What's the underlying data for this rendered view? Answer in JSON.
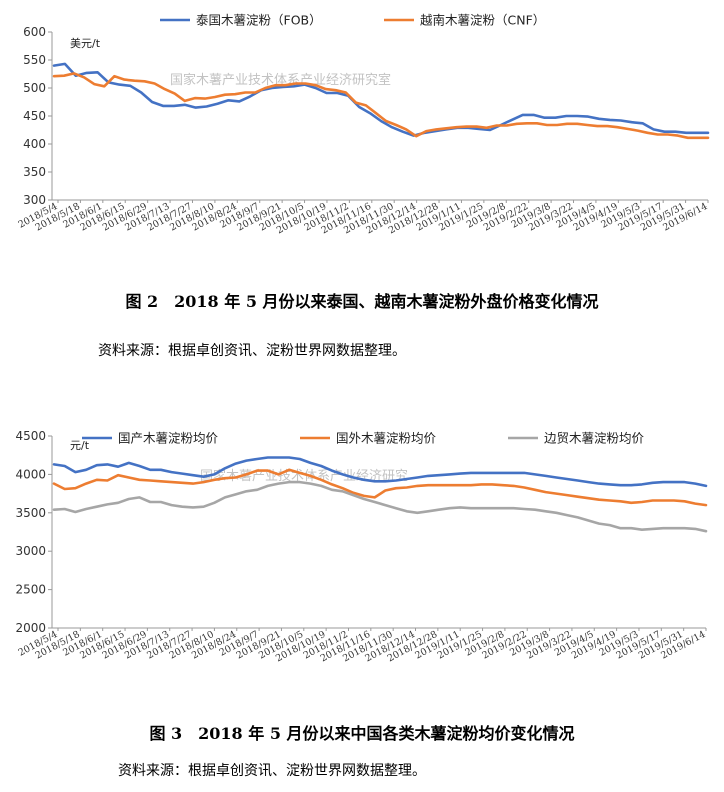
{
  "chart_data": [
    {
      "type": "line",
      "unit": "美元/t",
      "watermark": "国家木薯产业技术体系产业经济研究室",
      "ylim": [
        300,
        600
      ],
      "yticks": [
        300,
        350,
        400,
        450,
        500,
        550,
        600
      ],
      "grid": false,
      "legend_position": "top",
      "x_tick_labels": [
        "2018/5/4",
        "2018/5/18",
        "2018/6/1",
        "2018/6/15",
        "2018/6/29",
        "2018/7/13",
        "2018/7/27",
        "2018/8/10",
        "2018/8/24",
        "2018/9/7",
        "2018/9/21",
        "2018/10/5",
        "2018/10/19",
        "2018/11/2",
        "2018/11/16",
        "2018/11/30",
        "2018/12/14",
        "2018/12/28",
        "2019/1/11",
        "2019/1/25",
        "2019/2/8",
        "2019/2/22",
        "2019/3/8",
        "2019/3/22",
        "2019/4/5",
        "2019/4/19",
        "2019/5/3",
        "2019/5/17",
        "2019/5/31",
        "2019/6/14"
      ],
      "series": [
        {
          "name": "泰国木薯淀粉（FOB）",
          "color": "#4472c4",
          "values": [
            540,
            543,
            522,
            527,
            528,
            510,
            506,
            504,
            492,
            475,
            468,
            468,
            470,
            465,
            467,
            472,
            478,
            476,
            485,
            496,
            500,
            502,
            503,
            506,
            500,
            491,
            491,
            486,
            466,
            455,
            441,
            430,
            422,
            415,
            420,
            423,
            426,
            429,
            429,
            427,
            425,
            434,
            443,
            452,
            452,
            447,
            447,
            450,
            450,
            449,
            445,
            443,
            442,
            439,
            437,
            426,
            422,
            422,
            420,
            420,
            420
          ]
        },
        {
          "name": "越南木薯淀粉（CNF）",
          "color": "#ed7d31",
          "values": [
            521,
            522,
            526,
            519,
            507,
            503,
            521,
            515,
            513,
            512,
            508,
            498,
            490,
            477,
            482,
            481,
            484,
            488,
            489,
            492,
            492,
            500,
            505,
            505,
            508,
            508,
            505,
            498,
            496,
            492,
            474,
            469,
            455,
            441,
            434,
            426,
            414,
            423,
            426,
            428,
            430,
            431,
            431,
            429,
            433,
            433,
            436,
            437,
            437,
            434,
            434,
            436,
            436,
            434,
            432,
            432,
            430,
            427,
            424,
            420,
            417,
            417,
            415,
            411,
            411,
            411
          ]
        }
      ]
    },
    {
      "type": "line",
      "unit": "元/t",
      "watermark": "国家木薯产业技术体系产业经济研究",
      "ylim": [
        2000,
        4500
      ],
      "yticks": [
        2000,
        2500,
        3000,
        3500,
        4000,
        4500
      ],
      "grid": false,
      "legend_position": "top",
      "x_tick_labels": [
        "2018/5/4",
        "2018/5/18",
        "2018/6/1",
        "2018/6/15",
        "2018/6/29",
        "2018/7/13",
        "2018/7/27",
        "2018/8/10",
        "2018/8/24",
        "2018/9/7",
        "2018/9/21",
        "2018/10/5",
        "2018/10/19",
        "2018/11/2",
        "2018/11/16",
        "2018/11/30",
        "2018/12/14",
        "2018/12/28",
        "2019/1/11",
        "2019/1/25",
        "2019/2/8",
        "2019/2/22",
        "2019/3/8",
        "2019/3/22",
        "2019/4/5",
        "2019/4/19",
        "2019/5/3",
        "2019/5/17",
        "2019/5/31",
        "2019/6/14"
      ],
      "series": [
        {
          "name": "国产木薯淀粉均价",
          "color": "#4472c4",
          "values": [
            4130,
            4110,
            4030,
            4060,
            4120,
            4130,
            4100,
            4150,
            4110,
            4060,
            4060,
            4030,
            4010,
            3990,
            3970,
            4000,
            4080,
            4140,
            4180,
            4200,
            4220,
            4220,
            4220,
            4200,
            4150,
            4110,
            4050,
            4000,
            3960,
            3930,
            3910,
            3910,
            3920,
            3940,
            3960,
            3980,
            3990,
            4000,
            4010,
            4020,
            4020,
            4020,
            4020,
            4020,
            4020,
            4000,
            3980,
            3960,
            3940,
            3920,
            3900,
            3880,
            3870,
            3860,
            3860,
            3870,
            3890,
            3900,
            3900,
            3900,
            3880,
            3850
          ]
        },
        {
          "name": "国外木薯淀粉均价",
          "color": "#ed7d31",
          "values": [
            3880,
            3810,
            3820,
            3880,
            3930,
            3920,
            3990,
            3960,
            3930,
            3920,
            3910,
            3900,
            3890,
            3880,
            3900,
            3930,
            3950,
            3960,
            4000,
            4050,
            4050,
            4000,
            4060,
            4020,
            3980,
            3930,
            3870,
            3820,
            3760,
            3720,
            3700,
            3790,
            3820,
            3830,
            3850,
            3860,
            3860,
            3860,
            3860,
            3860,
            3870,
            3870,
            3860,
            3850,
            3830,
            3800,
            3770,
            3750,
            3730,
            3710,
            3690,
            3670,
            3660,
            3650,
            3630,
            3640,
            3660,
            3660,
            3660,
            3650,
            3620,
            3600
          ]
        },
        {
          "name": "边贸木薯淀粉均价",
          "color": "#a6a6a6",
          "values": [
            3540,
            3550,
            3510,
            3550,
            3580,
            3610,
            3630,
            3680,
            3700,
            3640,
            3640,
            3600,
            3580,
            3570,
            3580,
            3630,
            3700,
            3740,
            3780,
            3800,
            3850,
            3880,
            3900,
            3900,
            3880,
            3850,
            3800,
            3780,
            3730,
            3680,
            3640,
            3600,
            3560,
            3520,
            3500,
            3520,
            3540,
            3560,
            3570,
            3560,
            3560,
            3560,
            3560,
            3560,
            3550,
            3540,
            3520,
            3500,
            3470,
            3440,
            3400,
            3360,
            3340,
            3300,
            3300,
            3280,
            3290,
            3300,
            3300,
            3300,
            3290,
            3260
          ]
        }
      ]
    }
  ],
  "figures": [
    {
      "caption": "图 2　2018 年 5 月份以来泰国、越南木薯淀粉外盘价格变化情况",
      "source": "资料来源：根据卓创资讯、淀粉世界网数据整理。"
    },
    {
      "caption": "图 3　2018 年 5 月份以来中国各类木薯淀粉均价变化情况",
      "source": "资料来源：根据卓创资讯、淀粉世界网数据整理。"
    }
  ]
}
